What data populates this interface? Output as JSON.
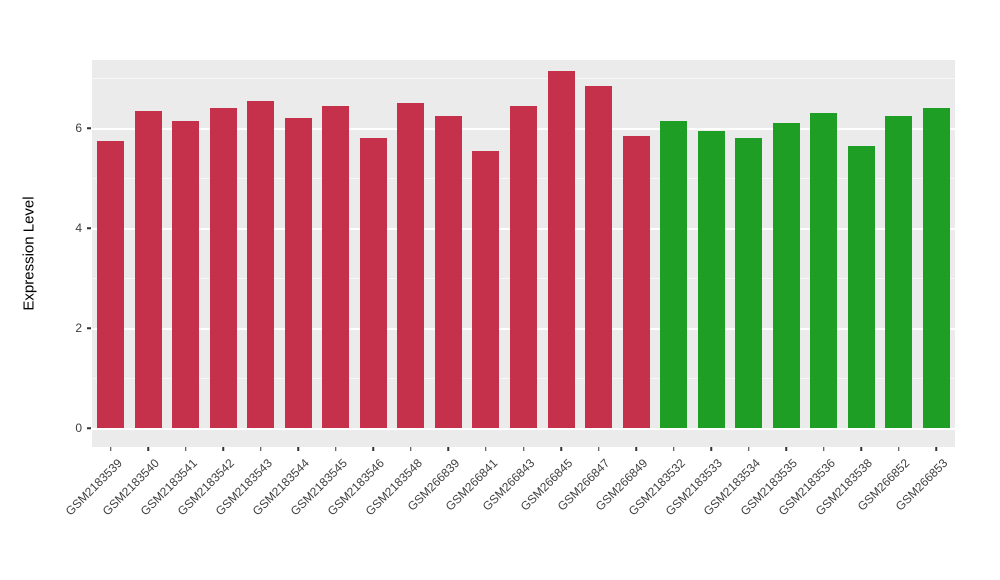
{
  "chart_data": {
    "type": "bar",
    "title": "",
    "xlabel": "",
    "ylabel": "Expression Level",
    "grid": true,
    "legend": false,
    "panel_background": "#EBEBEB",
    "grid_color": "#FFFFFF",
    "tick_color": "#333333",
    "axis_text_color": "#3F3F3F",
    "ylim": [
      -0.38,
      7.36
    ],
    "yticks": [
      {
        "v": 0,
        "label": "0"
      },
      {
        "v": 2,
        "label": "2"
      },
      {
        "v": 4,
        "label": "4"
      },
      {
        "v": 6,
        "label": "6"
      }
    ],
    "minor_ticks": [
      1,
      3,
      5,
      7
    ],
    "bar_width_fraction": 0.72,
    "group_colors": {
      "group1": "#C5314B",
      "group2": "#1E9E24"
    },
    "bars": [
      {
        "label": "GSM2183539",
        "value": 5.75,
        "group": "group1"
      },
      {
        "label": "GSM2183540",
        "value": 6.35,
        "group": "group1"
      },
      {
        "label": "GSM2183541",
        "value": 6.15,
        "group": "group1"
      },
      {
        "label": "GSM2183542",
        "value": 6.4,
        "group": "group1"
      },
      {
        "label": "GSM2183543",
        "value": 6.55,
        "group": "group1"
      },
      {
        "label": "GSM2183544",
        "value": 6.2,
        "group": "group1"
      },
      {
        "label": "GSM2183545",
        "value": 6.45,
        "group": "group1"
      },
      {
        "label": "GSM2183546",
        "value": 5.8,
        "group": "group1"
      },
      {
        "label": "GSM2183548",
        "value": 6.5,
        "group": "group1"
      },
      {
        "label": "GSM266839",
        "value": 6.25,
        "group": "group1"
      },
      {
        "label": "GSM266841",
        "value": 5.55,
        "group": "group1"
      },
      {
        "label": "GSM266843",
        "value": 6.45,
        "group": "group1"
      },
      {
        "label": "GSM266845",
        "value": 7.15,
        "group": "group1"
      },
      {
        "label": "GSM266847",
        "value": 6.85,
        "group": "group1"
      },
      {
        "label": "GSM266849",
        "value": 5.85,
        "group": "group1"
      },
      {
        "label": "GSM2183532",
        "value": 6.15,
        "group": "group2"
      },
      {
        "label": "GSM2183533",
        "value": 5.95,
        "group": "group2"
      },
      {
        "label": "GSM2183534",
        "value": 5.8,
        "group": "group2"
      },
      {
        "label": "GSM2183535",
        "value": 6.1,
        "group": "group2"
      },
      {
        "label": "GSM2183536",
        "value": 6.3,
        "group": "group2"
      },
      {
        "label": "GSM2183538",
        "value": 5.65,
        "group": "group2"
      },
      {
        "label": "GSM266852",
        "value": 6.25,
        "group": "group2"
      },
      {
        "label": "GSM266853",
        "value": 6.4,
        "group": "group2"
      }
    ]
  }
}
